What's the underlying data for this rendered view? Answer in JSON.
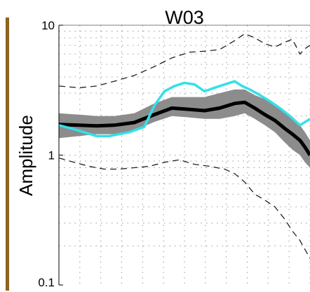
{
  "chart_data": {
    "type": "line",
    "title": "W03",
    "ylabel": "Amplitude",
    "xlabel": "",
    "yscale": "log",
    "ylim": [
      0.1,
      10
    ],
    "xlim": [
      0,
      1
    ],
    "grid": true,
    "grid_style": "dotted",
    "yticks": [
      {
        "value": 10,
        "label": "10"
      },
      {
        "value": 1,
        "label": "1"
      },
      {
        "value": 0.1,
        "label": "0.1"
      }
    ],
    "colors": {
      "band": "#8c8c8c",
      "median": "#000000",
      "observed": "#33e0e8",
      "bounds": "#222222",
      "side_bar": "#8a6420",
      "grid": "#9a9a9a"
    },
    "series": [
      {
        "style": "band",
        "x": [
          0,
          0.08,
          0.15,
          0.22,
          0.3,
          0.38,
          0.45,
          0.52,
          0.58,
          0.64,
          0.7,
          0.74,
          0.78,
          0.82,
          0.86,
          0.9,
          0.93,
          0.96,
          0.98,
          1.0
        ],
        "upper": [
          2.1,
          2.05,
          2.0,
          2.0,
          2.1,
          2.5,
          2.8,
          2.8,
          2.8,
          3.0,
          3.2,
          3.2,
          2.9,
          2.7,
          2.5,
          2.2,
          1.9,
          1.7,
          1.5,
          1.3
        ],
        "lower": [
          1.35,
          1.4,
          1.45,
          1.45,
          1.55,
          1.8,
          2.0,
          1.95,
          1.9,
          1.9,
          2.0,
          2.1,
          1.9,
          1.7,
          1.5,
          1.25,
          1.1,
          1.0,
          0.88,
          0.8
        ]
      },
      {
        "style": "median",
        "x": [
          0,
          0.08,
          0.15,
          0.22,
          0.3,
          0.38,
          0.45,
          0.52,
          0.58,
          0.64,
          0.7,
          0.74,
          0.78,
          0.82,
          0.86,
          0.9,
          0.93,
          0.96,
          0.98,
          1.0
        ],
        "values": [
          1.72,
          1.7,
          1.68,
          1.7,
          1.78,
          2.05,
          2.3,
          2.25,
          2.2,
          2.3,
          2.5,
          2.55,
          2.3,
          2.05,
          1.85,
          1.6,
          1.45,
          1.3,
          1.15,
          1.0
        ]
      },
      {
        "style": "observed",
        "x": [
          0,
          0.05,
          0.1,
          0.15,
          0.2,
          0.28,
          0.34,
          0.38,
          0.42,
          0.46,
          0.5,
          0.54,
          0.58,
          0.62,
          0.66,
          0.7,
          0.73,
          0.76,
          0.8,
          0.84,
          0.88,
          0.92,
          0.96,
          1.0
        ],
        "values": [
          1.7,
          1.6,
          1.5,
          1.4,
          1.4,
          1.5,
          1.65,
          2.4,
          3.1,
          3.4,
          3.6,
          3.5,
          3.1,
          3.3,
          3.5,
          3.7,
          3.4,
          3.2,
          2.9,
          2.6,
          2.3,
          2.0,
          1.7,
          1.9
        ]
      },
      {
        "style": "upper_bound",
        "x": [
          0,
          0.08,
          0.15,
          0.22,
          0.3,
          0.38,
          0.45,
          0.52,
          0.58,
          0.64,
          0.7,
          0.74,
          0.78,
          0.82,
          0.86,
          0.9,
          0.93,
          0.96,
          0.98,
          1.0
        ],
        "values": [
          3.4,
          3.3,
          3.4,
          3.7,
          4.1,
          4.8,
          5.6,
          6.2,
          6.3,
          6.5,
          7.6,
          8.6,
          8.0,
          7.2,
          6.8,
          7.4,
          7.8,
          6.0,
          6.6,
          7.0
        ]
      },
      {
        "style": "lower_bound",
        "x": [
          0,
          0.06,
          0.12,
          0.18,
          0.24,
          0.3,
          0.36,
          0.42,
          0.48,
          0.54,
          0.6,
          0.66,
          0.7,
          0.74,
          0.78,
          0.82,
          0.86,
          0.9,
          0.93,
          0.96,
          1.0
        ],
        "values": [
          0.95,
          0.88,
          0.82,
          0.78,
          0.78,
          0.8,
          0.82,
          0.88,
          0.92,
          0.85,
          0.82,
          0.78,
          0.72,
          0.62,
          0.5,
          0.45,
          0.4,
          0.32,
          0.26,
          0.22,
          0.16
        ]
      }
    ]
  }
}
